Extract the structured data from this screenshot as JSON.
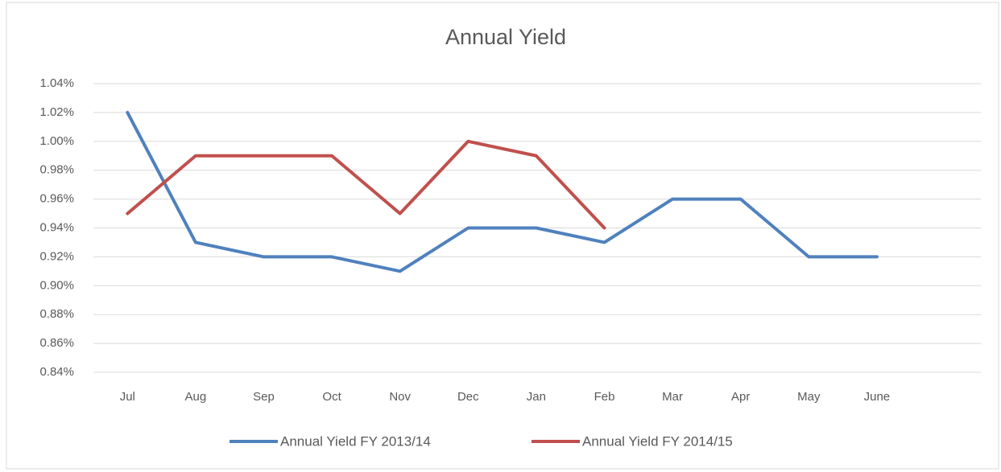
{
  "chart_data": {
    "type": "line",
    "title": "Annual Yield",
    "categories": [
      "Jul",
      "Aug",
      "Sep",
      "Oct",
      "Nov",
      "Dec",
      "Jan",
      "Feb",
      "Mar",
      "Apr",
      "May",
      "June"
    ],
    "series": [
      {
        "name": "Annual Yield FY 2013/14",
        "color": "#4f81bd",
        "values": [
          1.02,
          0.93,
          0.92,
          0.92,
          0.91,
          0.94,
          0.94,
          0.93,
          0.96,
          0.96,
          0.92,
          0.92
        ]
      },
      {
        "name": "Annual Yield FY 2014/15",
        "color": "#c0504d",
        "values": [
          0.95,
          0.99,
          0.99,
          0.99,
          0.95,
          1.0,
          0.99,
          0.94,
          null,
          null,
          null,
          null
        ]
      }
    ],
    "ylim": [
      0.84,
      1.04
    ],
    "yticks": [
      {
        "value": 0.84,
        "label": "0.84%"
      },
      {
        "value": 0.86,
        "label": "0.86%"
      },
      {
        "value": 0.88,
        "label": "0.88%"
      },
      {
        "value": 0.9,
        "label": "0.90%"
      },
      {
        "value": 0.92,
        "label": "0.92%"
      },
      {
        "value": 0.94,
        "label": "0.94%"
      },
      {
        "value": 0.96,
        "label": "0.96%"
      },
      {
        "value": 0.98,
        "label": "0.98%"
      },
      {
        "value": 1.0,
        "label": "1.00%"
      },
      {
        "value": 1.02,
        "label": "1.02%"
      },
      {
        "value": 1.04,
        "label": "1.04%"
      }
    ],
    "grid": true,
    "legend": "bottom"
  }
}
